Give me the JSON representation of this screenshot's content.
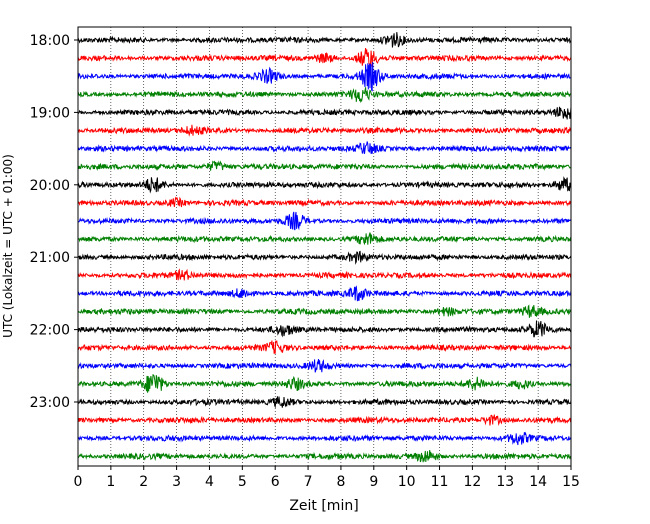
{
  "chart_data": {
    "type": "line",
    "title": "",
    "xlabel": "Zeit  [min]",
    "ylabel": "UTC (Lokalzeit = UTC + 01:00)",
    "xlim": [
      0,
      15
    ],
    "x_ticks": [
      "0",
      "1",
      "2",
      "3",
      "4",
      "5",
      "6",
      "7",
      "8",
      "9",
      "10",
      "11",
      "12",
      "13",
      "14",
      "15"
    ],
    "y_ticks": [
      "18:00",
      "19:00",
      "20:00",
      "21:00",
      "22:00",
      "23:00"
    ],
    "grid": "vertical dotted",
    "row_colors": [
      "#000000",
      "#ff0000",
      "#0000ff",
      "#008000"
    ],
    "trace_interval_min": 15,
    "trace_starts": [
      "18:00",
      "18:15",
      "18:30",
      "18:45",
      "19:00",
      "19:15",
      "19:30",
      "19:45",
      "20:00",
      "20:15",
      "20:30",
      "20:45",
      "21:00",
      "21:15",
      "21:30",
      "21:45",
      "22:00",
      "22:15",
      "22:30",
      "22:45",
      "23:00",
      "23:15",
      "23:30",
      "23:45"
    ],
    "events": [
      {
        "trace": 0,
        "minute": 9.6,
        "amplitude": 0.9
      },
      {
        "trace": 1,
        "minute": 8.8,
        "amplitude": 1.2
      },
      {
        "trace": 1,
        "minute": 7.5,
        "amplitude": 0.6
      },
      {
        "trace": 2,
        "minute": 8.9,
        "amplitude": 1.8
      },
      {
        "trace": 2,
        "minute": 5.8,
        "amplitude": 0.8
      },
      {
        "trace": 3,
        "minute": 8.6,
        "amplitude": 1.0
      },
      {
        "trace": 4,
        "minute": 14.8,
        "amplitude": 0.8
      },
      {
        "trace": 5,
        "minute": 3.5,
        "amplitude": 0.5
      },
      {
        "trace": 6,
        "minute": 8.8,
        "amplitude": 0.7
      },
      {
        "trace": 7,
        "minute": 4.2,
        "amplitude": 0.6
      },
      {
        "trace": 8,
        "minute": 2.3,
        "amplitude": 0.9
      },
      {
        "trace": 8,
        "minute": 14.8,
        "amplitude": 0.9
      },
      {
        "trace": 9,
        "minute": 3.0,
        "amplitude": 0.5
      },
      {
        "trace": 10,
        "minute": 6.6,
        "amplitude": 1.0
      },
      {
        "trace": 11,
        "minute": 8.8,
        "amplitude": 0.7
      },
      {
        "trace": 12,
        "minute": 8.5,
        "amplitude": 0.5
      },
      {
        "trace": 13,
        "minute": 3.2,
        "amplitude": 0.5
      },
      {
        "trace": 14,
        "minute": 8.5,
        "amplitude": 0.9
      },
      {
        "trace": 14,
        "minute": 5.0,
        "amplitude": 0.6
      },
      {
        "trace": 15,
        "minute": 13.8,
        "amplitude": 0.7
      },
      {
        "trace": 15,
        "minute": 11.2,
        "amplitude": 0.5
      },
      {
        "trace": 16,
        "minute": 14.0,
        "amplitude": 1.0
      },
      {
        "trace": 16,
        "minute": 6.3,
        "amplitude": 0.6
      },
      {
        "trace": 17,
        "minute": 6.0,
        "amplitude": 0.7
      },
      {
        "trace": 18,
        "minute": 7.3,
        "amplitude": 0.7
      },
      {
        "trace": 19,
        "minute": 2.3,
        "amplitude": 1.6
      },
      {
        "trace": 19,
        "minute": 6.6,
        "amplitude": 0.7
      },
      {
        "trace": 19,
        "minute": 12.1,
        "amplitude": 0.7
      },
      {
        "trace": 19,
        "minute": 13.5,
        "amplitude": 0.6
      },
      {
        "trace": 20,
        "minute": 6.2,
        "amplitude": 0.6
      },
      {
        "trace": 21,
        "minute": 12.6,
        "amplitude": 0.6
      },
      {
        "trace": 22,
        "minute": 13.4,
        "amplitude": 0.7
      },
      {
        "trace": 23,
        "minute": 10.6,
        "amplitude": 0.8
      }
    ]
  }
}
